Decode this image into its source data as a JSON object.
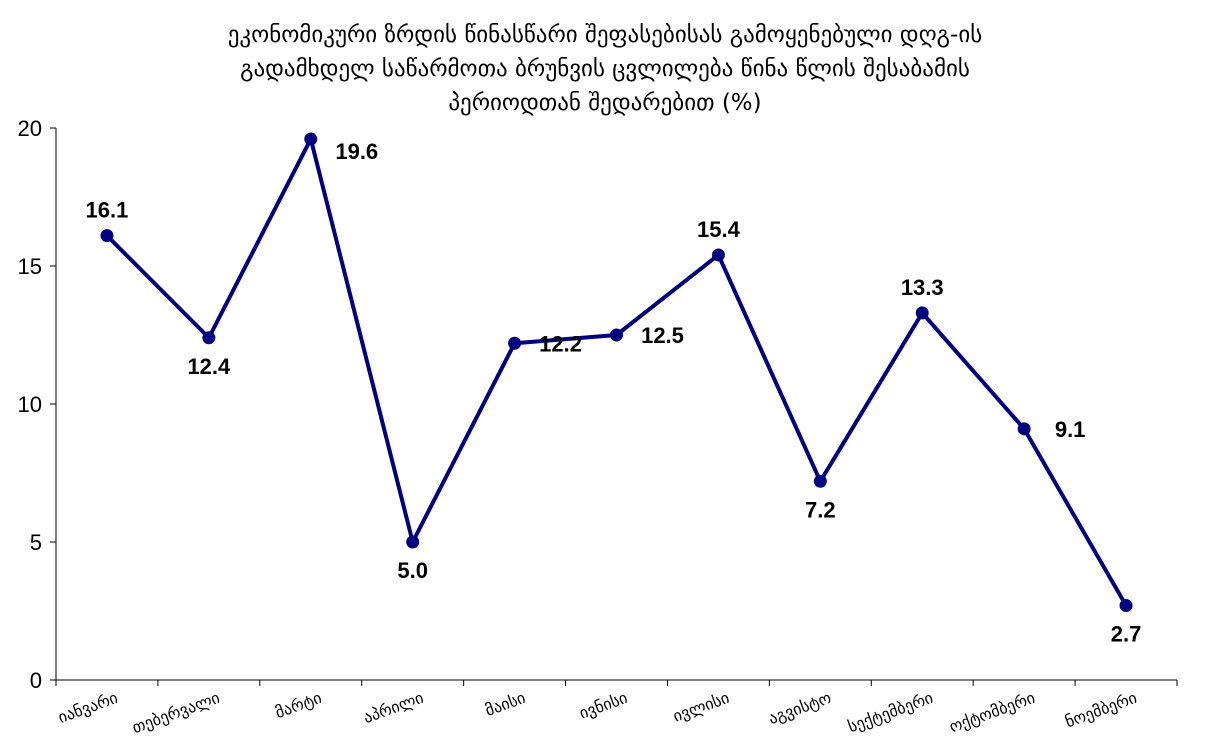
{
  "chart_data": {
    "type": "line",
    "title_lines": [
      "ეკონომიკური ზრდის წინასწარი შეფასებისას გამოყენებული დღგ-ის",
      "გადამხდელ საწარმოთა ბრუნვის ცვლილება წინა წლის შესაბამის",
      "პერიოდთან შედარებით (%)"
    ],
    "categories": [
      "იანვარი",
      "თებერვალი",
      "მარტი",
      "აპრილი",
      "მაისი",
      "ივნისი",
      "ივლისი",
      "აგვისტო",
      "სექტემბერი",
      "ოქტომბერი",
      "ნოემბერი"
    ],
    "values": [
      16.1,
      12.4,
      19.6,
      5.0,
      12.2,
      12.5,
      15.4,
      7.2,
      13.3,
      9.1,
      2.7
    ],
    "value_labels": [
      "16.1",
      "12.4",
      "19.6",
      "5.0",
      "12.2",
      "12.5",
      "15.4",
      "7.2",
      "13.3",
      "9.1",
      "2.7"
    ],
    "ylim": [
      0,
      20
    ],
    "yticks": [
      "0",
      "5",
      "10",
      "15",
      "20"
    ],
    "grid": false,
    "legend": "none",
    "line_color": "#000080",
    "marker_color": "#000080"
  }
}
